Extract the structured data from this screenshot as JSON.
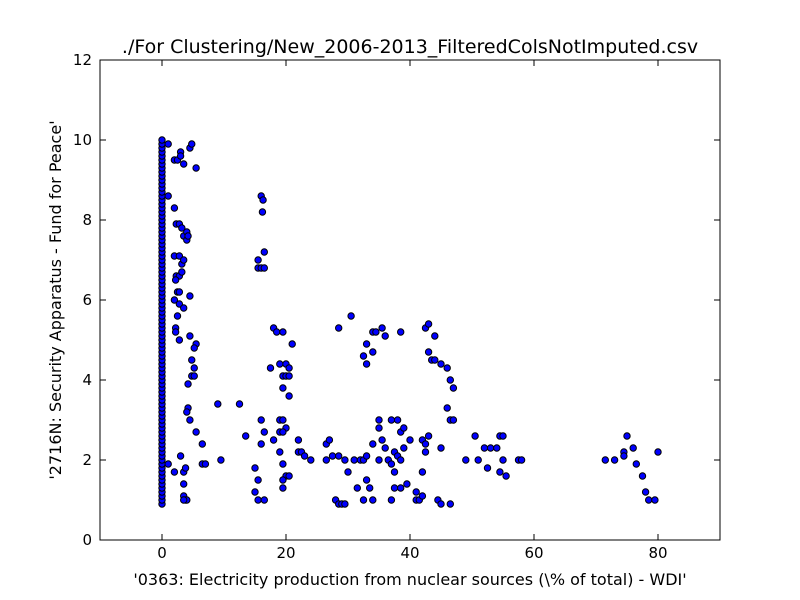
{
  "chart_data": {
    "type": "scatter",
    "title": "./For Clustering/New_2006-2013_FilteredColsNotImputed.csv",
    "xlabel": "'0363: Electricity production from nuclear sources  (\\% of total) - WDI'",
    "ylabel": "'2716N: Security Apparatus - Fund for Peace'",
    "xlim": [
      -10,
      90
    ],
    "ylim": [
      0,
      12
    ],
    "xticks": [
      0,
      20,
      40,
      60,
      80
    ],
    "yticks": [
      0,
      2,
      4,
      6,
      8,
      10,
      12
    ],
    "grid": false,
    "marker_color": "#0000ff",
    "marker_edge_color": "#000000",
    "zero_column": {
      "x": 0,
      "y_min": 0.9,
      "y_max": 10.0,
      "step": 0.1
    },
    "points": [
      [
        1,
        9.9
      ],
      [
        1,
        8.6
      ],
      [
        1,
        1.9
      ],
      [
        2,
        9.5
      ],
      [
        2.5,
        9.5
      ],
      [
        3,
        9.7
      ],
      [
        3,
        9.6
      ],
      [
        3.5,
        9.4
      ],
      [
        4.5,
        9.8
      ],
      [
        4.8,
        9.9
      ],
      [
        5.5,
        9.3
      ],
      [
        2,
        8.3
      ],
      [
        2.3,
        7.9
      ],
      [
        2.8,
        7.9
      ],
      [
        3.2,
        7.8
      ],
      [
        3.5,
        7.6
      ],
      [
        4,
        7.5
      ],
      [
        4,
        7.7
      ],
      [
        4.2,
        7.6
      ],
      [
        2,
        7.1
      ],
      [
        2.8,
        7.1
      ],
      [
        3.2,
        6.9
      ],
      [
        3.5,
        7.0
      ],
      [
        2.3,
        6.6
      ],
      [
        2.8,
        6.6
      ],
      [
        3.2,
        6.7
      ],
      [
        2.2,
        6.5
      ],
      [
        2.5,
        6.2
      ],
      [
        2.8,
        6.2
      ],
      [
        2,
        6.0
      ],
      [
        2.8,
        5.9
      ],
      [
        3.5,
        5.8
      ],
      [
        4.5,
        6.1
      ],
      [
        2.5,
        5.6
      ],
      [
        2.2,
        5.3
      ],
      [
        2.2,
        5.2
      ],
      [
        2.8,
        5.0
      ],
      [
        4.5,
        5.1
      ],
      [
        5.5,
        4.9
      ],
      [
        5.2,
        4.8
      ],
      [
        4.8,
        4.5
      ],
      [
        5.2,
        4.3
      ],
      [
        4.8,
        4.1
      ],
      [
        5.2,
        4.1
      ],
      [
        4.2,
        3.9
      ],
      [
        4.2,
        3.3
      ],
      [
        4,
        3.2
      ],
      [
        4.5,
        3.0
      ],
      [
        5.5,
        2.7
      ],
      [
        6.5,
        2.4
      ],
      [
        6.5,
        1.9
      ],
      [
        7,
        1.9
      ],
      [
        9.5,
        2.0
      ],
      [
        9,
        3.4
      ],
      [
        12.5,
        3.4
      ],
      [
        13.5,
        2.6
      ],
      [
        2,
        1.7
      ],
      [
        3,
        2.1
      ],
      [
        3.5,
        1.7
      ],
      [
        3.5,
        1.4
      ],
      [
        3.8,
        1.8
      ],
      [
        3.5,
        1.1
      ],
      [
        3.8,
        1.0
      ],
      [
        4,
        1.0
      ],
      [
        3.5,
        1.0
      ],
      [
        16,
        8.6
      ],
      [
        16.3,
        8.5
      ],
      [
        16.2,
        8.2
      ],
      [
        16.5,
        7.2
      ],
      [
        15.5,
        7.0
      ],
      [
        15.5,
        6.8
      ],
      [
        16,
        6.8
      ],
      [
        16.5,
        6.8
      ],
      [
        17.5,
        4.3
      ],
      [
        18,
        5.3
      ],
      [
        18.5,
        5.2
      ],
      [
        19.5,
        5.2
      ],
      [
        19,
        4.4
      ],
      [
        19.5,
        4.1
      ],
      [
        20,
        4.4
      ],
      [
        20,
        4.1
      ],
      [
        20.5,
        4.3
      ],
      [
        21,
        4.9
      ],
      [
        20.5,
        4.1
      ],
      [
        19.5,
        3.8
      ],
      [
        20.5,
        3.6
      ],
      [
        16,
        3.0
      ],
      [
        16.5,
        2.7
      ],
      [
        16,
        2.4
      ],
      [
        15,
        1.8
      ],
      [
        15.5,
        1.5
      ],
      [
        15,
        1.2
      ],
      [
        15.5,
        1.0
      ],
      [
        16.5,
        1.0
      ],
      [
        18,
        2.5
      ],
      [
        19,
        3.0
      ],
      [
        19.5,
        3.0
      ],
      [
        19,
        2.7
      ],
      [
        20,
        2.8
      ],
      [
        19.5,
        2.7
      ],
      [
        19,
        2.2
      ],
      [
        19.5,
        1.9
      ],
      [
        20,
        1.6
      ],
      [
        19.5,
        1.5
      ],
      [
        19.5,
        1.3
      ],
      [
        20.5,
        1.6
      ],
      [
        22,
        2.5
      ],
      [
        22,
        2.2
      ],
      [
        22.5,
        2.2
      ],
      [
        23,
        2.1
      ],
      [
        24,
        2.0
      ],
      [
        26.5,
        2.4
      ],
      [
        27,
        2.5
      ],
      [
        26.5,
        2.0
      ],
      [
        27.5,
        2.1
      ],
      [
        28,
        1.0
      ],
      [
        28.5,
        0.9
      ],
      [
        29,
        0.9
      ],
      [
        29.5,
        0.9
      ],
      [
        28.5,
        2.1
      ],
      [
        29.5,
        2.0
      ],
      [
        30,
        1.7
      ],
      [
        31,
        2.0
      ],
      [
        31.5,
        1.3
      ],
      [
        32,
        2.0
      ],
      [
        32.5,
        2.0
      ],
      [
        33,
        2.1
      ],
      [
        32.5,
        1.0
      ],
      [
        33,
        1.5
      ],
      [
        33.5,
        1.3
      ],
      [
        34,
        1.0
      ],
      [
        34,
        2.4
      ],
      [
        35,
        2.0
      ],
      [
        35,
        2.8
      ],
      [
        35,
        3.0
      ],
      [
        35.5,
        2.5
      ],
      [
        36,
        2.3
      ],
      [
        36.5,
        2.0
      ],
      [
        37,
        1.9
      ],
      [
        37,
        3.0
      ],
      [
        37.5,
        2.2
      ],
      [
        38,
        3.0
      ],
      [
        38.5,
        2.7
      ],
      [
        39,
        2.8
      ],
      [
        38,
        2.1
      ],
      [
        38.5,
        2.0
      ],
      [
        37.5,
        1.7
      ],
      [
        37.5,
        1.3
      ],
      [
        37,
        1.0
      ],
      [
        38.5,
        1.3
      ],
      [
        39.5,
        1.4
      ],
      [
        40,
        2.5
      ],
      [
        39,
        2.3
      ],
      [
        28.5,
        5.3
      ],
      [
        30.5,
        5.6
      ],
      [
        32.5,
        4.6
      ],
      [
        33,
        4.4
      ],
      [
        33,
        4.9
      ],
      [
        34,
        4.7
      ],
      [
        34,
        5.2
      ],
      [
        34.5,
        5.2
      ],
      [
        35.5,
        5.3
      ],
      [
        36,
        5.1
      ],
      [
        38.5,
        5.2
      ],
      [
        41,
        1.0
      ],
      [
        41,
        1.2
      ],
      [
        41.5,
        1.0
      ],
      [
        42,
        1.1
      ],
      [
        42,
        1.7
      ],
      [
        42,
        2.5
      ],
      [
        42.5,
        2.2
      ],
      [
        42.5,
        2.4
      ],
      [
        43,
        2.6
      ],
      [
        42.5,
        5.3
      ],
      [
        43,
        5.4
      ],
      [
        43.5,
        4.5
      ],
      [
        43,
        4.7
      ],
      [
        44,
        5.1
      ],
      [
        44,
        4.5
      ],
      [
        45,
        4.4
      ],
      [
        46,
        4.3
      ],
      [
        46,
        3.3
      ],
      [
        46.5,
        3.0
      ],
      [
        47,
        3.0
      ],
      [
        46.5,
        4.0
      ],
      [
        47,
        3.8
      ],
      [
        45,
        2.3
      ],
      [
        44.5,
        1.0
      ],
      [
        45,
        0.9
      ],
      [
        46.5,
        0.9
      ],
      [
        49,
        2.0
      ],
      [
        50.5,
        2.6
      ],
      [
        51,
        2.0
      ],
      [
        52,
        2.3
      ],
      [
        52.5,
        1.8
      ],
      [
        53,
        2.3
      ],
      [
        54,
        2.3
      ],
      [
        54.5,
        2.6
      ],
      [
        55,
        2.6
      ],
      [
        54.5,
        1.7
      ],
      [
        55,
        2.0
      ],
      [
        55.5,
        1.6
      ],
      [
        57.5,
        2.0
      ],
      [
        58,
        2.0
      ],
      [
        71.5,
        2.0
      ],
      [
        73,
        2.0
      ],
      [
        74.5,
        2.2
      ],
      [
        74.5,
        2.1
      ],
      [
        75,
        2.6
      ],
      [
        76,
        2.3
      ],
      [
        76.5,
        1.9
      ],
      [
        77.5,
        1.6
      ],
      [
        78,
        1.2
      ],
      [
        78.5,
        1.0
      ],
      [
        79.5,
        1.0
      ],
      [
        80,
        2.2
      ]
    ]
  }
}
